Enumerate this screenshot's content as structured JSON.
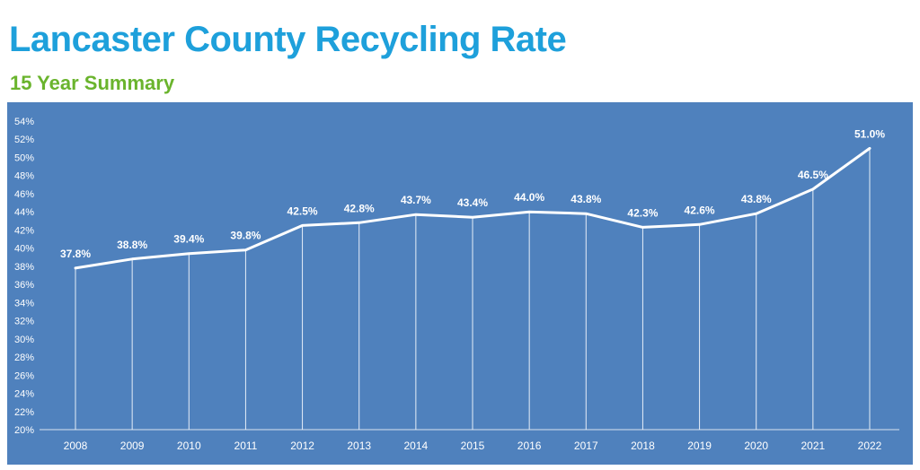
{
  "header": {
    "title": "Lancaster County Recycling Rate",
    "subtitle": "15 Year Summary"
  },
  "colors": {
    "title": "#1ea0db",
    "subtitle": "#6ab42d",
    "plot_background": "#4f81bd",
    "line": "#ffffff"
  },
  "chart_data": {
    "type": "line",
    "title": "Lancaster County Recycling Rate",
    "subtitle": "15 Year Summary",
    "xlabel": "",
    "ylabel": "",
    "categories": [
      "2008",
      "2009",
      "2010",
      "2011",
      "2012",
      "2013",
      "2014",
      "2015",
      "2016",
      "2017",
      "2018",
      "2019",
      "2020",
      "2021",
      "2022"
    ],
    "values": [
      37.8,
      38.8,
      39.4,
      39.8,
      42.5,
      42.8,
      43.7,
      43.4,
      44.0,
      43.8,
      42.3,
      42.6,
      43.8,
      46.5,
      51.0
    ],
    "data_labels": [
      "37.8%",
      "38.8%",
      "39.4%",
      "39.8%",
      "42.5%",
      "42.8%",
      "43.7%",
      "43.4%",
      "44.0%",
      "43.8%",
      "42.3%",
      "42.6%",
      "43.8%",
      "46.5%",
      "51.0%"
    ],
    "ylim": [
      20,
      54
    ],
    "yticks": [
      "20%",
      "22%",
      "24%",
      "26%",
      "28%",
      "30%",
      "32%",
      "34%",
      "36%",
      "38%",
      "40%",
      "42%",
      "44%",
      "46%",
      "48%",
      "50%",
      "52%",
      "54%"
    ],
    "grid": false,
    "drop_lines": true,
    "legend": "none"
  }
}
